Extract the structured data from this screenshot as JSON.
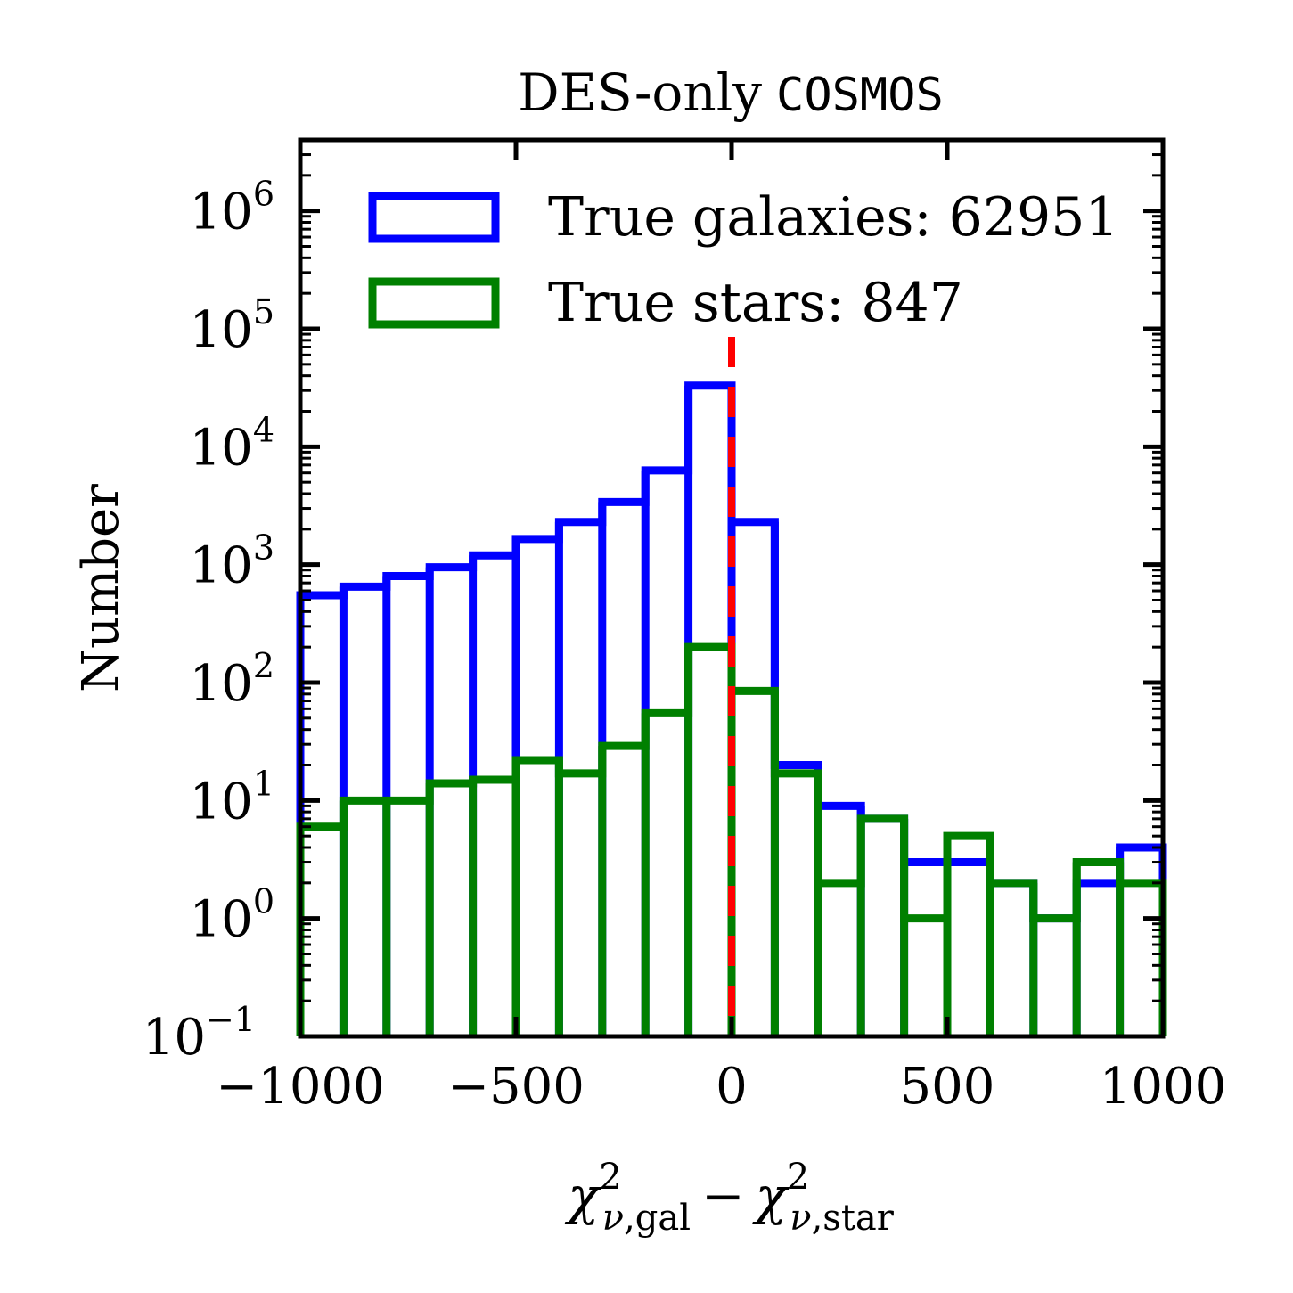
{
  "chart_data": {
    "type": "histogram",
    "title_prefix": "DES-only",
    "title_suffix": "COSMOS",
    "ylabel": "Number",
    "xlabel": {
      "chi": "χ",
      "nu": "ν",
      "gal_sub": ",gal",
      "star_sub": ",star",
      "sup": "2",
      "minus": "−"
    },
    "x_range": [
      -1000,
      1000
    ],
    "y_scale": "log",
    "y_range": [
      0.1,
      4000000
    ],
    "x_ticks": [
      {
        "value": -1000,
        "label": "−1000"
      },
      {
        "value": -500,
        "label": "−500"
      },
      {
        "value": 0,
        "label": "0"
      },
      {
        "value": 500,
        "label": "500"
      },
      {
        "value": 1000,
        "label": "1000"
      }
    ],
    "y_ticks": [
      {
        "value": 0.1,
        "base": "10",
        "exp": "−1"
      },
      {
        "value": 1,
        "base": "10",
        "exp": "0"
      },
      {
        "value": 10,
        "base": "10",
        "exp": "1"
      },
      {
        "value": 100,
        "base": "10",
        "exp": "2"
      },
      {
        "value": 1000,
        "base": "10",
        "exp": "3"
      },
      {
        "value": 10000,
        "base": "10",
        "exp": "4"
      },
      {
        "value": 100000,
        "base": "10",
        "exp": "5"
      },
      {
        "value": 1000000,
        "base": "10",
        "exp": "6"
      }
    ],
    "bin_edges": [
      -1000,
      -900,
      -800,
      -700,
      -600,
      -500,
      -400,
      -300,
      -200,
      -100,
      0,
      100,
      200,
      300,
      400,
      500,
      600,
      700,
      800,
      900,
      1000
    ],
    "series": [
      {
        "name": "True galaxies",
        "count": "62951",
        "color": "#0000ff",
        "values": [
          550,
          650,
          800,
          950,
          1200,
          1650,
          2300,
          3400,
          6300,
          33000,
          2300,
          20,
          9,
          7,
          3,
          3,
          2,
          1,
          2,
          4
        ]
      },
      {
        "name": "True stars",
        "count": "847",
        "color": "#008000",
        "values": [
          6,
          10,
          10,
          14,
          15,
          22,
          17,
          29,
          55,
          200,
          85,
          17,
          2,
          7,
          1,
          5,
          2,
          1,
          3,
          2
        ]
      }
    ],
    "vline": {
      "x": 0,
      "color": "#ff0000",
      "style": "dashed"
    },
    "legend_position": "top-right"
  }
}
